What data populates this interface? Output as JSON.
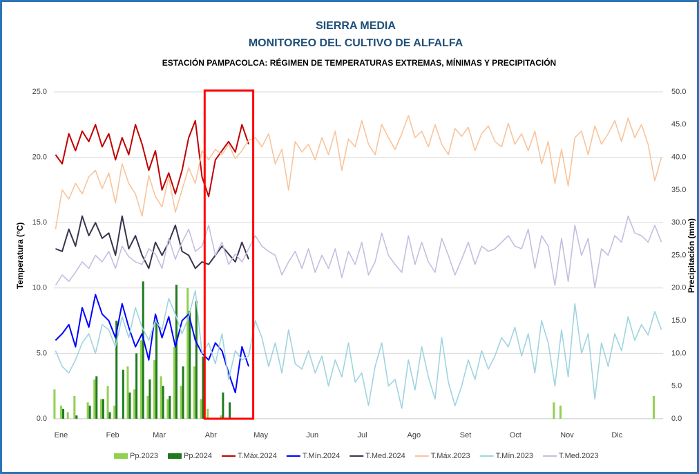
{
  "chart_data": {
    "type": "combo",
    "title": "SIERRA MEDIA",
    "subtitle": "MONITOREO DEL CULTIVO DE ALFALFA",
    "subtitle2": "ESTACIÓN PAMPACOLCA: RÉGIMEN DE TEMPERATURAS EXTREMAS, MÍNIMAS Y PRECIPITACIÓN",
    "y_label": "Temperatura (°C)",
    "y2_label": "Precipitación (mm)",
    "xlim": [
      0,
      366
    ],
    "xticks": [
      {
        "value": 1,
        "label": "Ene"
      },
      {
        "value": 32,
        "label": "Feb"
      },
      {
        "value": 60,
        "label": "Mar"
      },
      {
        "value": 91,
        "label": "Abr"
      },
      {
        "value": 121,
        "label": "May"
      },
      {
        "value": 152,
        "label": "Jun"
      },
      {
        "value": 182,
        "label": "Jul"
      },
      {
        "value": 213,
        "label": "Ago"
      },
      {
        "value": 244,
        "label": "Set"
      },
      {
        "value": 274,
        "label": "Oct"
      },
      {
        "value": 305,
        "label": "Nov"
      },
      {
        "value": 335,
        "label": "Dic"
      }
    ],
    "ylim": [
      0,
      25
    ],
    "yticks": [
      {
        "value": 0,
        "label": "0.0"
      },
      {
        "value": 5,
        "label": "5.0"
      },
      {
        "value": 10,
        "label": "10.0"
      },
      {
        "value": 15,
        "label": "15.0"
      },
      {
        "value": 20,
        "label": "20.0"
      },
      {
        "value": 25,
        "label": "25.0"
      }
    ],
    "y2lim": [
      0,
      50
    ],
    "y2ticks": [
      {
        "value": 0,
        "label": "0.0"
      },
      {
        "value": 5,
        "label": "5.0"
      },
      {
        "value": 10,
        "label": "10.0"
      },
      {
        "value": 15,
        "label": "15.0"
      },
      {
        "value": 20,
        "label": "20.0"
      },
      {
        "value": 25,
        "label": "25.0"
      },
      {
        "value": 30,
        "label": "30.0"
      },
      {
        "value": 35,
        "label": "35.0"
      },
      {
        "value": 40,
        "label": "40.0"
      },
      {
        "value": 45,
        "label": "45.0"
      },
      {
        "value": 50,
        "label": "50.0"
      }
    ],
    "grid": true,
    "series": [
      {
        "name": "Pp.2023",
        "type": "bar",
        "axis": "y2",
        "color": "#92d050",
        "x": [
          1,
          5,
          9,
          13,
          17,
          21,
          25,
          29,
          33,
          37,
          41,
          45,
          49,
          53,
          57,
          61,
          65,
          69,
          73,
          77,
          81,
          85,
          89,
          93,
          97,
          101,
          105,
          109,
          113,
          117,
          121,
          125,
          129,
          133,
          137,
          141,
          145,
          149,
          153,
          157,
          161,
          165,
          169,
          173,
          177,
          181,
          185,
          189,
          193,
          197,
          201,
          205,
          209,
          213,
          217,
          221,
          225,
          229,
          233,
          237,
          241,
          245,
          249,
          253,
          257,
          261,
          265,
          269,
          273,
          277,
          281,
          285,
          289,
          293,
          297,
          301,
          305,
          309,
          313,
          317,
          321,
          325,
          329,
          333,
          337,
          341,
          345,
          349,
          353,
          357,
          361,
          365
        ],
        "values": [
          4.5,
          2.0,
          1.0,
          3.5,
          0,
          2.5,
          6.0,
          3.0,
          5.0,
          2.0,
          0,
          8.0,
          4.5,
          12.0,
          3.5,
          9.0,
          6.5,
          3.0,
          11.0,
          5.0,
          20.0,
          8.0,
          3.0,
          1.5,
          0,
          0.5,
          0,
          0,
          0,
          0,
          0,
          0,
          0,
          0,
          0,
          0,
          0,
          0,
          0,
          0,
          0,
          0,
          0,
          0,
          0,
          0,
          0,
          0,
          0,
          0,
          0,
          0,
          0,
          0,
          0,
          0,
          0,
          0,
          0,
          0,
          0,
          0,
          0,
          0,
          0,
          0,
          0,
          0,
          0,
          0,
          0,
          0,
          0,
          0,
          0,
          2.5,
          2.0,
          0,
          0,
          0,
          0,
          0,
          0,
          0,
          0,
          0,
          0,
          0,
          0,
          0,
          3.5,
          0
        ]
      },
      {
        "name": "Pp.2024",
        "type": "bar",
        "axis": "y2",
        "color": "#1e7a1e",
        "x": [
          1,
          5,
          9,
          13,
          17,
          21,
          25,
          29,
          33,
          37,
          41,
          45,
          49,
          53,
          57,
          61,
          65,
          69,
          73,
          77,
          81,
          85,
          89,
          93,
          97,
          101,
          105,
          109,
          113,
          117
        ],
        "values": [
          0,
          1.5,
          0,
          0.5,
          0,
          2.0,
          6.5,
          3.0,
          1.0,
          15.0,
          7.5,
          4.0,
          10.0,
          21.0,
          6.0,
          15.0,
          5.0,
          3.5,
          20.5,
          8.0,
          16.5,
          18.0,
          9.5,
          0,
          0,
          4.0,
          2.5,
          0,
          0,
          0
        ]
      },
      {
        "name": "T.Máx.2024",
        "type": "line",
        "color": "#c00000",
        "x": [
          1,
          5,
          9,
          13,
          17,
          21,
          25,
          29,
          33,
          37,
          41,
          45,
          49,
          53,
          57,
          61,
          65,
          69,
          73,
          77,
          81,
          85,
          89,
          93,
          97,
          101,
          105,
          109,
          113,
          117
        ],
        "values": [
          20.2,
          19.5,
          21.8,
          20.5,
          22.0,
          21.2,
          22.5,
          20.8,
          21.8,
          19.8,
          21.5,
          20.2,
          22.5,
          21.0,
          19.0,
          20.5,
          17.5,
          18.8,
          17.2,
          19.0,
          21.5,
          22.8,
          18.5,
          17.0,
          19.8,
          20.5,
          21.2,
          20.4,
          22.5,
          21.0
        ]
      },
      {
        "name": "T.Mín.2024",
        "type": "line",
        "color": "#0000ff",
        "x": [
          1,
          5,
          9,
          13,
          17,
          21,
          25,
          29,
          33,
          37,
          41,
          45,
          49,
          53,
          57,
          61,
          65,
          69,
          73,
          77,
          81,
          85,
          89,
          93,
          97,
          101,
          105,
          109,
          113,
          117
        ],
        "values": [
          6.0,
          6.5,
          7.2,
          5.5,
          8.5,
          7.0,
          9.5,
          8.0,
          7.5,
          6.2,
          8.8,
          7.0,
          5.5,
          6.5,
          4.5,
          8.0,
          6.2,
          7.8,
          5.5,
          7.5,
          8.0,
          6.0,
          5.0,
          4.5,
          5.8,
          5.2,
          3.5,
          2.0,
          5.5,
          4.0
        ]
      },
      {
        "name": "T.Med.2024",
        "type": "line",
        "color": "#3a3350",
        "x": [
          1,
          5,
          9,
          13,
          17,
          21,
          25,
          29,
          33,
          37,
          41,
          45,
          49,
          53,
          57,
          61,
          65,
          69,
          73,
          77,
          81,
          85,
          89,
          93,
          97,
          101,
          105,
          109,
          113,
          117
        ],
        "values": [
          13.0,
          12.8,
          14.5,
          13.2,
          15.5,
          14.0,
          15.0,
          13.8,
          14.2,
          12.5,
          15.5,
          13.0,
          14.0,
          12.5,
          11.5,
          13.5,
          12.5,
          13.5,
          14.8,
          12.8,
          12.5,
          11.5,
          12.0,
          11.8,
          12.5,
          13.2,
          12.6,
          12.0,
          13.5,
          12.2
        ]
      },
      {
        "name": "T.Máx.2023",
        "type": "line",
        "color": "#f8c49c",
        "x": [
          1,
          5,
          9,
          13,
          17,
          21,
          25,
          29,
          33,
          37,
          41,
          45,
          49,
          53,
          57,
          61,
          65,
          69,
          73,
          77,
          81,
          85,
          89,
          93,
          97,
          101,
          105,
          109,
          113,
          117,
          121,
          125,
          129,
          133,
          137,
          141,
          145,
          149,
          153,
          157,
          161,
          165,
          169,
          173,
          177,
          181,
          185,
          189,
          193,
          197,
          201,
          205,
          209,
          213,
          217,
          221,
          225,
          229,
          233,
          237,
          241,
          245,
          249,
          253,
          257,
          261,
          265,
          269,
          273,
          277,
          281,
          285,
          289,
          293,
          297,
          301,
          305,
          309,
          313,
          317,
          321,
          325,
          329,
          333,
          337,
          341,
          345,
          349,
          353,
          357,
          361,
          365
        ],
        "values": [
          14.5,
          17.5,
          16.8,
          18.0,
          17.2,
          18.5,
          19.0,
          17.6,
          18.8,
          16.5,
          19.5,
          18.0,
          17.2,
          15.5,
          18.6,
          17.0,
          16.2,
          18.5,
          15.8,
          17.5,
          19.2,
          18.0,
          20.5,
          19.8,
          20.6,
          20.2,
          21.0,
          19.9,
          20.5,
          21.3,
          21.5,
          20.8,
          21.8,
          19.5,
          20.6,
          17.5,
          21.2,
          20.4,
          21.0,
          19.8,
          21.5,
          20.2,
          22.0,
          19.0,
          21.4,
          20.8,
          22.8,
          21.0,
          20.2,
          22.5,
          21.5,
          20.6,
          21.8,
          23.2,
          21.5,
          22.0,
          20.8,
          22.5,
          21.0,
          20.2,
          22.2,
          21.6,
          22.3,
          20.5,
          21.8,
          22.4,
          21.2,
          20.8,
          22.6,
          21.0,
          21.8,
          20.5,
          22.0,
          19.5,
          21.2,
          18.0,
          20.6,
          17.8,
          21.5,
          22.0,
          20.2,
          22.4,
          21.0,
          21.8,
          22.8,
          21.2,
          23.0,
          21.5,
          22.5,
          21.0,
          18.2,
          20.0
        ]
      },
      {
        "name": "T.Mín.2023",
        "type": "line",
        "color": "#9fd4e0",
        "x": [
          1,
          5,
          9,
          13,
          17,
          21,
          25,
          29,
          33,
          37,
          41,
          45,
          49,
          53,
          57,
          61,
          65,
          69,
          73,
          77,
          81,
          85,
          89,
          93,
          97,
          101,
          105,
          109,
          113,
          117,
          121,
          125,
          129,
          133,
          137,
          141,
          145,
          149,
          153,
          157,
          161,
          165,
          169,
          173,
          177,
          181,
          185,
          189,
          193,
          197,
          201,
          205,
          209,
          213,
          217,
          221,
          225,
          229,
          233,
          237,
          241,
          245,
          249,
          253,
          257,
          261,
          265,
          269,
          273,
          277,
          281,
          285,
          289,
          293,
          297,
          301,
          305,
          309,
          313,
          317,
          321,
          325,
          329,
          333,
          337,
          341,
          345,
          349,
          353,
          357,
          361,
          365
        ],
        "values": [
          5.2,
          4.0,
          3.5,
          4.5,
          5.8,
          6.5,
          5.0,
          7.2,
          6.8,
          5.5,
          7.8,
          6.2,
          8.5,
          7.0,
          6.0,
          7.5,
          6.8,
          9.2,
          8.0,
          6.5,
          7.8,
          9.8,
          5.0,
          5.8,
          4.2,
          6.5,
          3.0,
          5.2,
          4.5,
          4.8,
          7.5,
          6.2,
          4.0,
          5.8,
          3.5,
          6.8,
          4.2,
          3.8,
          5.2,
          3.5,
          4.8,
          2.5,
          4.5,
          3.2,
          5.8,
          2.8,
          3.5,
          1.0,
          4.0,
          5.8,
          2.5,
          3.0,
          0.8,
          4.5,
          2.2,
          5.5,
          3.2,
          1.5,
          6.2,
          2.8,
          1.0,
          2.5,
          4.5,
          3.0,
          5.2,
          3.8,
          4.8,
          6.2,
          5.5,
          7.0,
          4.8,
          6.5,
          3.5,
          7.5,
          5.8,
          2.5,
          6.8,
          3.2,
          8.8,
          5.0,
          6.5,
          1.5,
          5.8,
          4.0,
          6.5,
          5.2,
          7.8,
          6.0,
          7.2,
          6.4,
          8.2,
          6.8
        ]
      },
      {
        "name": "T.Med.2023",
        "type": "line",
        "color": "#c6bde0",
        "x": [
          1,
          5,
          9,
          13,
          17,
          21,
          25,
          29,
          33,
          37,
          41,
          45,
          49,
          53,
          57,
          61,
          65,
          69,
          73,
          77,
          81,
          85,
          89,
          93,
          97,
          101,
          105,
          109,
          113,
          117,
          121,
          125,
          129,
          133,
          137,
          141,
          145,
          149,
          153,
          157,
          161,
          165,
          169,
          173,
          177,
          181,
          185,
          189,
          193,
          197,
          201,
          205,
          209,
          213,
          217,
          221,
          225,
          229,
          233,
          237,
          241,
          245,
          249,
          253,
          257,
          261,
          265,
          269,
          273,
          277,
          281,
          285,
          289,
          293,
          297,
          301,
          305,
          309,
          313,
          317,
          321,
          325,
          329,
          333,
          337,
          341,
          345,
          349,
          353,
          357,
          361,
          365
        ],
        "values": [
          10.2,
          11.0,
          10.5,
          11.2,
          12.0,
          11.5,
          12.5,
          12.0,
          12.8,
          11.5,
          13.2,
          12.4,
          12.0,
          11.8,
          13.0,
          12.6,
          11.5,
          13.8,
          12.2,
          13.5,
          14.5,
          12.8,
          13.2,
          14.8,
          12.5,
          13.5,
          11.8,
          12.6,
          12.0,
          13.0,
          14.0,
          13.2,
          12.8,
          12.5,
          11.0,
          12.0,
          12.8,
          11.5,
          13.0,
          11.2,
          12.5,
          11.5,
          13.0,
          10.8,
          12.8,
          11.8,
          13.5,
          11.0,
          12.0,
          14.2,
          12.5,
          11.8,
          11.2,
          14.0,
          11.8,
          13.5,
          12.0,
          11.2,
          13.8,
          12.5,
          11.0,
          12.2,
          13.5,
          11.8,
          13.2,
          12.8,
          13.0,
          13.5,
          14.0,
          13.2,
          13.0,
          14.5,
          11.5,
          14.0,
          13.2,
          10.2,
          13.8,
          10.5,
          14.8,
          12.5,
          13.8,
          10.0,
          13.0,
          12.5,
          14.0,
          13.5,
          15.5,
          14.2,
          14.0,
          13.5,
          14.8,
          13.5
        ]
      }
    ]
  }
}
